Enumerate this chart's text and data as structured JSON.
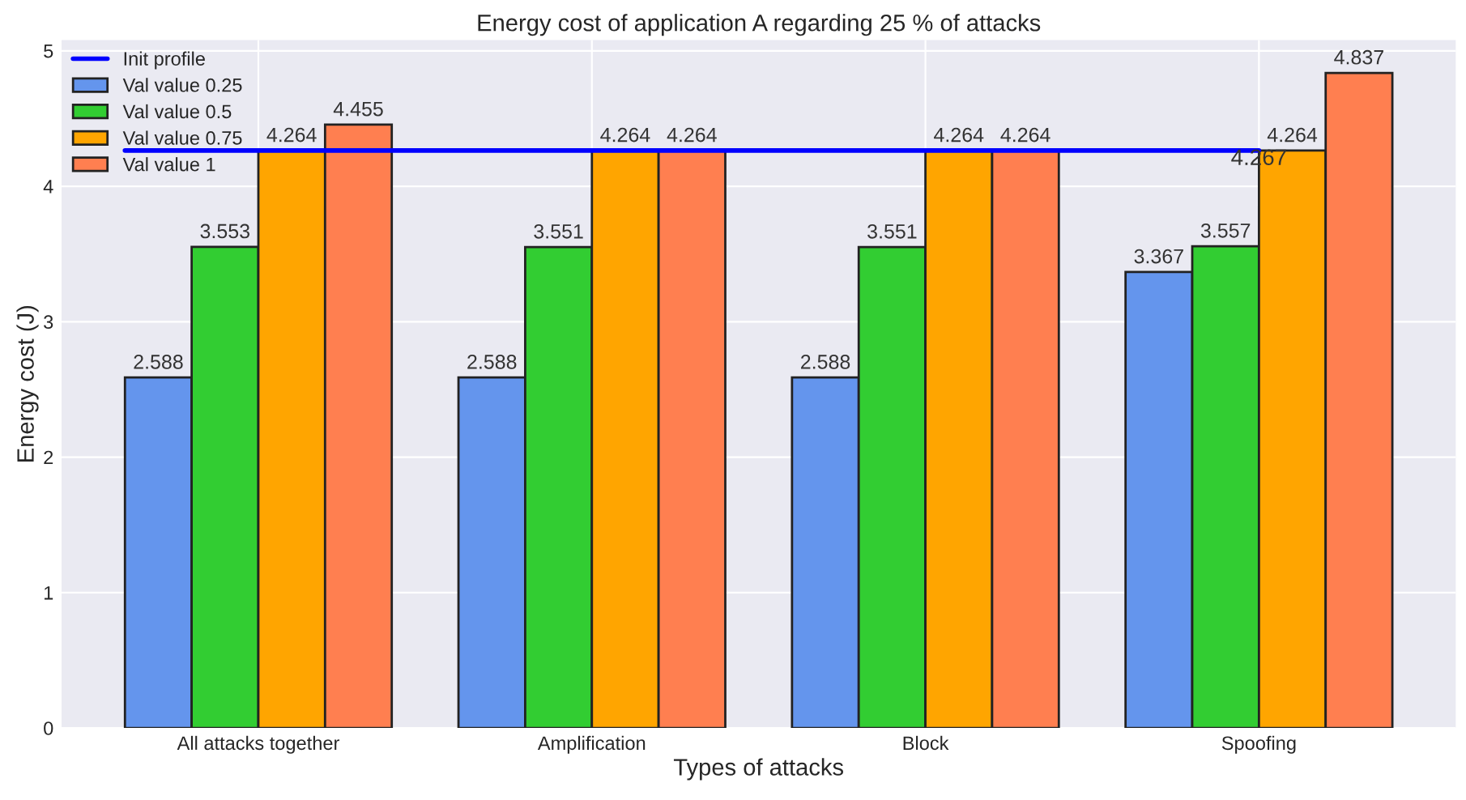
{
  "chart_data": {
    "type": "bar",
    "title": "Energy cost of application A regarding 25 % of attacks",
    "xlabel": "Types of attacks",
    "ylabel": "Energy cost (J)",
    "categories": [
      "All attacks together",
      "Amplification",
      "Block",
      "Spoofing"
    ],
    "series": [
      {
        "name": "Val value 0.25",
        "color": "#6495ed",
        "values": [
          2.588,
          2.588,
          2.588,
          3.367
        ]
      },
      {
        "name": "Val value 0.5",
        "color": "#32cd32",
        "values": [
          3.553,
          3.551,
          3.551,
          3.557
        ]
      },
      {
        "name": "Val value 0.75",
        "color": "#ffa500",
        "values": [
          4.264,
          4.264,
          4.264,
          4.264
        ]
      },
      {
        "name": "Val value 1",
        "color": "#ff7f50",
        "values": [
          4.455,
          4.264,
          4.264,
          4.837
        ]
      }
    ],
    "ref_lines": [
      {
        "axis": "y",
        "value": 4.264,
        "label": "Init profile",
        "color": "#0000ff"
      }
    ],
    "annotations": [
      {
        "text": "4.267",
        "x": "Spoofing",
        "y": 4.2
      }
    ],
    "ylim": [
      0,
      5.08
    ],
    "yticks": [
      0,
      1,
      2,
      3,
      4,
      5
    ],
    "data_labels": true,
    "grid": true,
    "legend": "top left"
  }
}
